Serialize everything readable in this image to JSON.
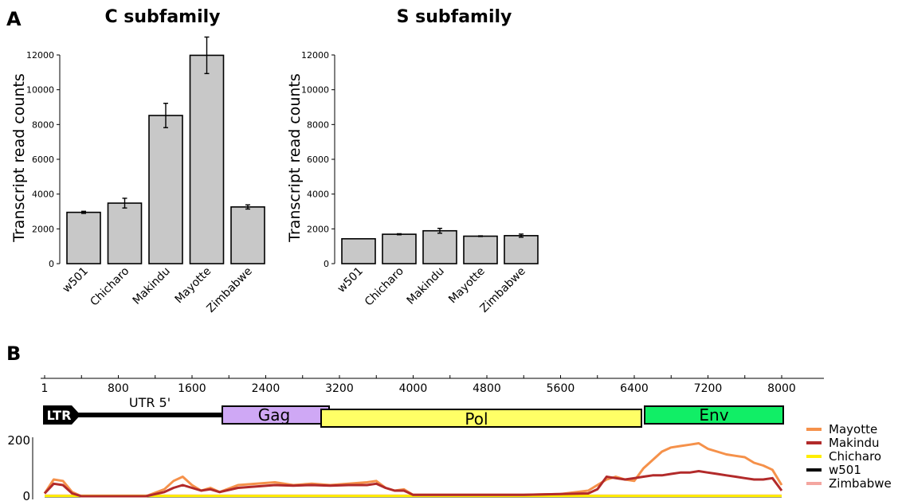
{
  "panels": {
    "a_letter": "A",
    "b_letter": "B"
  },
  "chart_data": [
    {
      "type": "bar",
      "title": "C subfamily",
      "ylabel": "Transcript read counts",
      "xlabel": "",
      "ylim": [
        0,
        12000
      ],
      "yticks": [
        0,
        2000,
        4000,
        6000,
        8000,
        10000,
        12000
      ],
      "categories": [
        "w501",
        "Chicharo",
        "Makindu",
        "Mayotte",
        "Zimbabwe"
      ],
      "values": [
        2950,
        3480,
        8520,
        11980,
        3260
      ],
      "errors": [
        60,
        280,
        700,
        1050,
        120
      ],
      "bar_color": "#c8c8c8",
      "grid": false
    },
    {
      "type": "bar",
      "title": "S subfamily",
      "ylabel": "Transcript read counts",
      "xlabel": "",
      "ylim": [
        0,
        12000
      ],
      "yticks": [
        0,
        2000,
        4000,
        6000,
        8000,
        10000,
        12000
      ],
      "categories": [
        "w501",
        "Chicharo",
        "Makindu",
        "Mayotte",
        "Zimbabwe"
      ],
      "values": [
        1430,
        1690,
        1890,
        1580,
        1610
      ],
      "errors": [
        0,
        30,
        140,
        20,
        90
      ],
      "bar_color": "#c8c8c8",
      "grid": false
    },
    {
      "type": "line",
      "title": "",
      "xlabel": "",
      "ylabel": "",
      "xlim": [
        1,
        8500
      ],
      "ylim": [
        0,
        200
      ],
      "ruler_ticks": [
        1,
        800,
        1600,
        2400,
        3200,
        4000,
        4800,
        5600,
        6400,
        7200,
        8000
      ],
      "cov_yticks": [
        0,
        200
      ],
      "domains": [
        {
          "name": "LTR",
          "start": 1,
          "end": 400,
          "color": "#000000"
        },
        {
          "name": "UTR 5'",
          "start": 400,
          "end": 1900,
          "color": "#000000"
        },
        {
          "name": "Gag",
          "start": 1900,
          "end": 3050,
          "color": "#cfa8f5"
        },
        {
          "name": "Pol",
          "start": 3050,
          "end": 6450,
          "color": "#ffff66"
        },
        {
          "name": "Env",
          "start": 6450,
          "end": 8000,
          "color": "#11ee66"
        }
      ],
      "legend_position": "right",
      "series": [
        {
          "name": "Mayotte",
          "color": "#f5914a",
          "x": [
            1,
            100,
            200,
            300,
            400,
            500,
            700,
            900,
            1100,
            1300,
            1400,
            1500,
            1600,
            1700,
            1800,
            1900,
            2100,
            2300,
            2500,
            2700,
            2900,
            3100,
            3300,
            3500,
            3600,
            3700,
            3800,
            3900,
            4000,
            4400,
            4800,
            5200,
            5600,
            5900,
            6000,
            6100,
            6200,
            6300,
            6400,
            6500,
            6600,
            6700,
            6800,
            6900,
            7000,
            7100,
            7200,
            7300,
            7400,
            7500,
            7600,
            7700,
            7800,
            7900,
            8000
          ],
          "values": [
            10,
            60,
            55,
            15,
            0,
            0,
            0,
            0,
            0,
            25,
            55,
            70,
            40,
            20,
            30,
            15,
            40,
            45,
            50,
            40,
            45,
            40,
            45,
            50,
            55,
            30,
            20,
            25,
            5,
            5,
            5,
            5,
            8,
            20,
            40,
            60,
            70,
            60,
            55,
            100,
            130,
            160,
            175,
            180,
            185,
            190,
            170,
            160,
            150,
            145,
            140,
            120,
            110,
            95,
            40
          ]
        },
        {
          "name": "Makindu",
          "color": "#b22a2a",
          "x": [
            1,
            100,
            200,
            300,
            400,
            500,
            700,
            900,
            1100,
            1300,
            1400,
            1500,
            1600,
            1700,
            1800,
            1900,
            2100,
            2300,
            2500,
            2700,
            2900,
            3100,
            3300,
            3500,
            3600,
            3700,
            3800,
            3900,
            4000,
            4400,
            4800,
            5200,
            5600,
            5900,
            6000,
            6100,
            6200,
            6300,
            6400,
            6500,
            6600,
            6700,
            6800,
            6900,
            7000,
            7100,
            7200,
            7300,
            7400,
            7500,
            7600,
            7700,
            7800,
            7900,
            8000
          ],
          "values": [
            10,
            45,
            40,
            10,
            0,
            0,
            0,
            0,
            0,
            15,
            30,
            40,
            30,
            20,
            25,
            15,
            30,
            35,
            40,
            38,
            40,
            38,
            40,
            40,
            45,
            30,
            20,
            20,
            5,
            5,
            5,
            5,
            8,
            10,
            25,
            70,
            65,
            60,
            65,
            70,
            75,
            75,
            80,
            85,
            85,
            90,
            85,
            80,
            75,
            70,
            65,
            60,
            60,
            65,
            20
          ]
        },
        {
          "name": "Chicharo",
          "color": "#ffee00",
          "x": [
            1,
            8000
          ],
          "values": [
            1,
            1
          ]
        },
        {
          "name": "w501",
          "color": "#000000",
          "x": [
            1,
            8000
          ],
          "values": [
            0,
            0
          ]
        },
        {
          "name": "Zimbabwe",
          "color": "#f4a6a0",
          "x": [
            1,
            8000
          ],
          "values": [
            2,
            2
          ]
        }
      ]
    }
  ]
}
